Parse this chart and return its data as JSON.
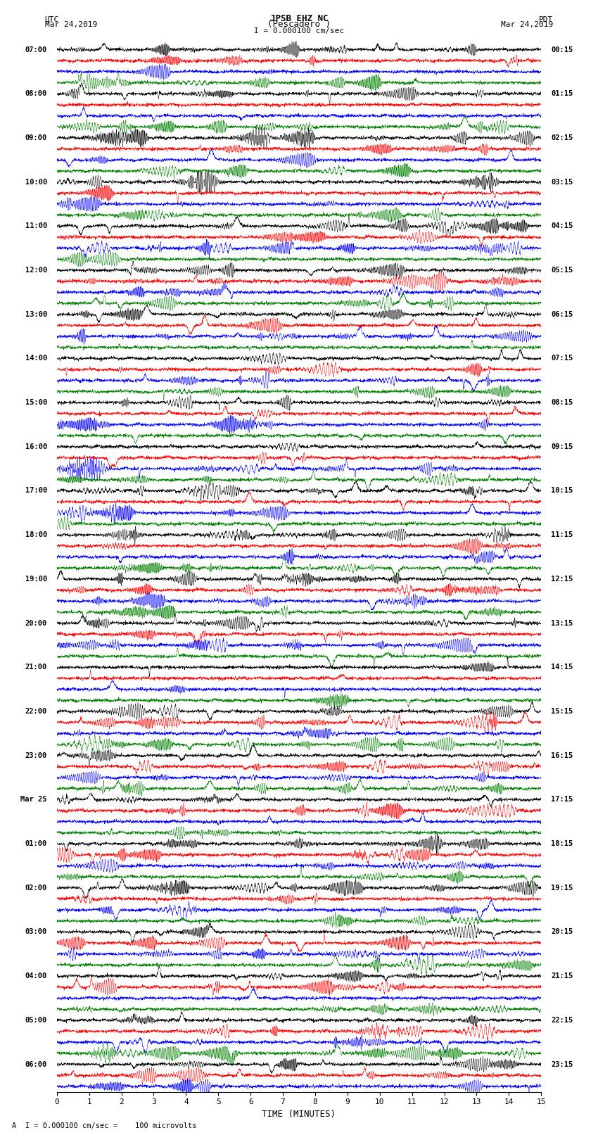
{
  "title_line1": "JPSB EHZ NC",
  "title_line2": "(Pescadero )",
  "scale_text": "I = 0.000100 cm/sec",
  "utc_label": "UTC",
  "utc_date": "Mar 24,2019",
  "pdt_label": "PDT",
  "pdt_date": "Mar 24,2019",
  "xlabel": "TIME (MINUTES)",
  "footer": "A  I = 0.000100 cm/sec =    100 microvolts",
  "xmin": 0,
  "xmax": 15,
  "colors": [
    "black",
    "red",
    "blue",
    "green"
  ],
  "left_times_utc": [
    "07:00",
    "",
    "",
    "",
    "08:00",
    "",
    "",
    "",
    "09:00",
    "",
    "",
    "",
    "10:00",
    "",
    "",
    "",
    "11:00",
    "",
    "",
    "",
    "12:00",
    "",
    "",
    "",
    "13:00",
    "",
    "",
    "",
    "14:00",
    "",
    "",
    "",
    "15:00",
    "",
    "",
    "",
    "16:00",
    "",
    "",
    "",
    "17:00",
    "",
    "",
    "",
    "18:00",
    "",
    "",
    "",
    "19:00",
    "",
    "",
    "",
    "20:00",
    "",
    "",
    "",
    "21:00",
    "",
    "",
    "",
    "22:00",
    "",
    "",
    "",
    "23:00",
    "",
    "",
    "",
    "Mar 25",
    "",
    "",
    "",
    "01:00",
    "",
    "",
    "",
    "02:00",
    "",
    "",
    "",
    "03:00",
    "",
    "",
    "",
    "04:00",
    "",
    "",
    "",
    "05:00",
    "",
    "",
    "",
    "06:00",
    "",
    ""
  ],
  "right_times_pdt": [
    "00:15",
    "",
    "",
    "",
    "01:15",
    "",
    "",
    "",
    "02:15",
    "",
    "",
    "",
    "03:15",
    "",
    "",
    "",
    "04:15",
    "",
    "",
    "",
    "05:15",
    "",
    "",
    "",
    "06:15",
    "",
    "",
    "",
    "07:15",
    "",
    "",
    "",
    "08:15",
    "",
    "",
    "",
    "09:15",
    "",
    "",
    "",
    "10:15",
    "",
    "",
    "",
    "11:15",
    "",
    "",
    "",
    "12:15",
    "",
    "",
    "",
    "13:15",
    "",
    "",
    "",
    "14:15",
    "",
    "",
    "",
    "15:15",
    "",
    "",
    "",
    "16:15",
    "",
    "",
    "",
    "17:15",
    "",
    "",
    "",
    "18:15",
    "",
    "",
    "",
    "19:15",
    "",
    "",
    "",
    "20:15",
    "",
    "",
    "",
    "21:15",
    "",
    "",
    "",
    "22:15",
    "",
    "",
    "",
    "23:15",
    "",
    ""
  ],
  "num_rows": 95,
  "seed": 12345,
  "fig_width": 8.5,
  "fig_height": 16.13,
  "dpi": 100
}
